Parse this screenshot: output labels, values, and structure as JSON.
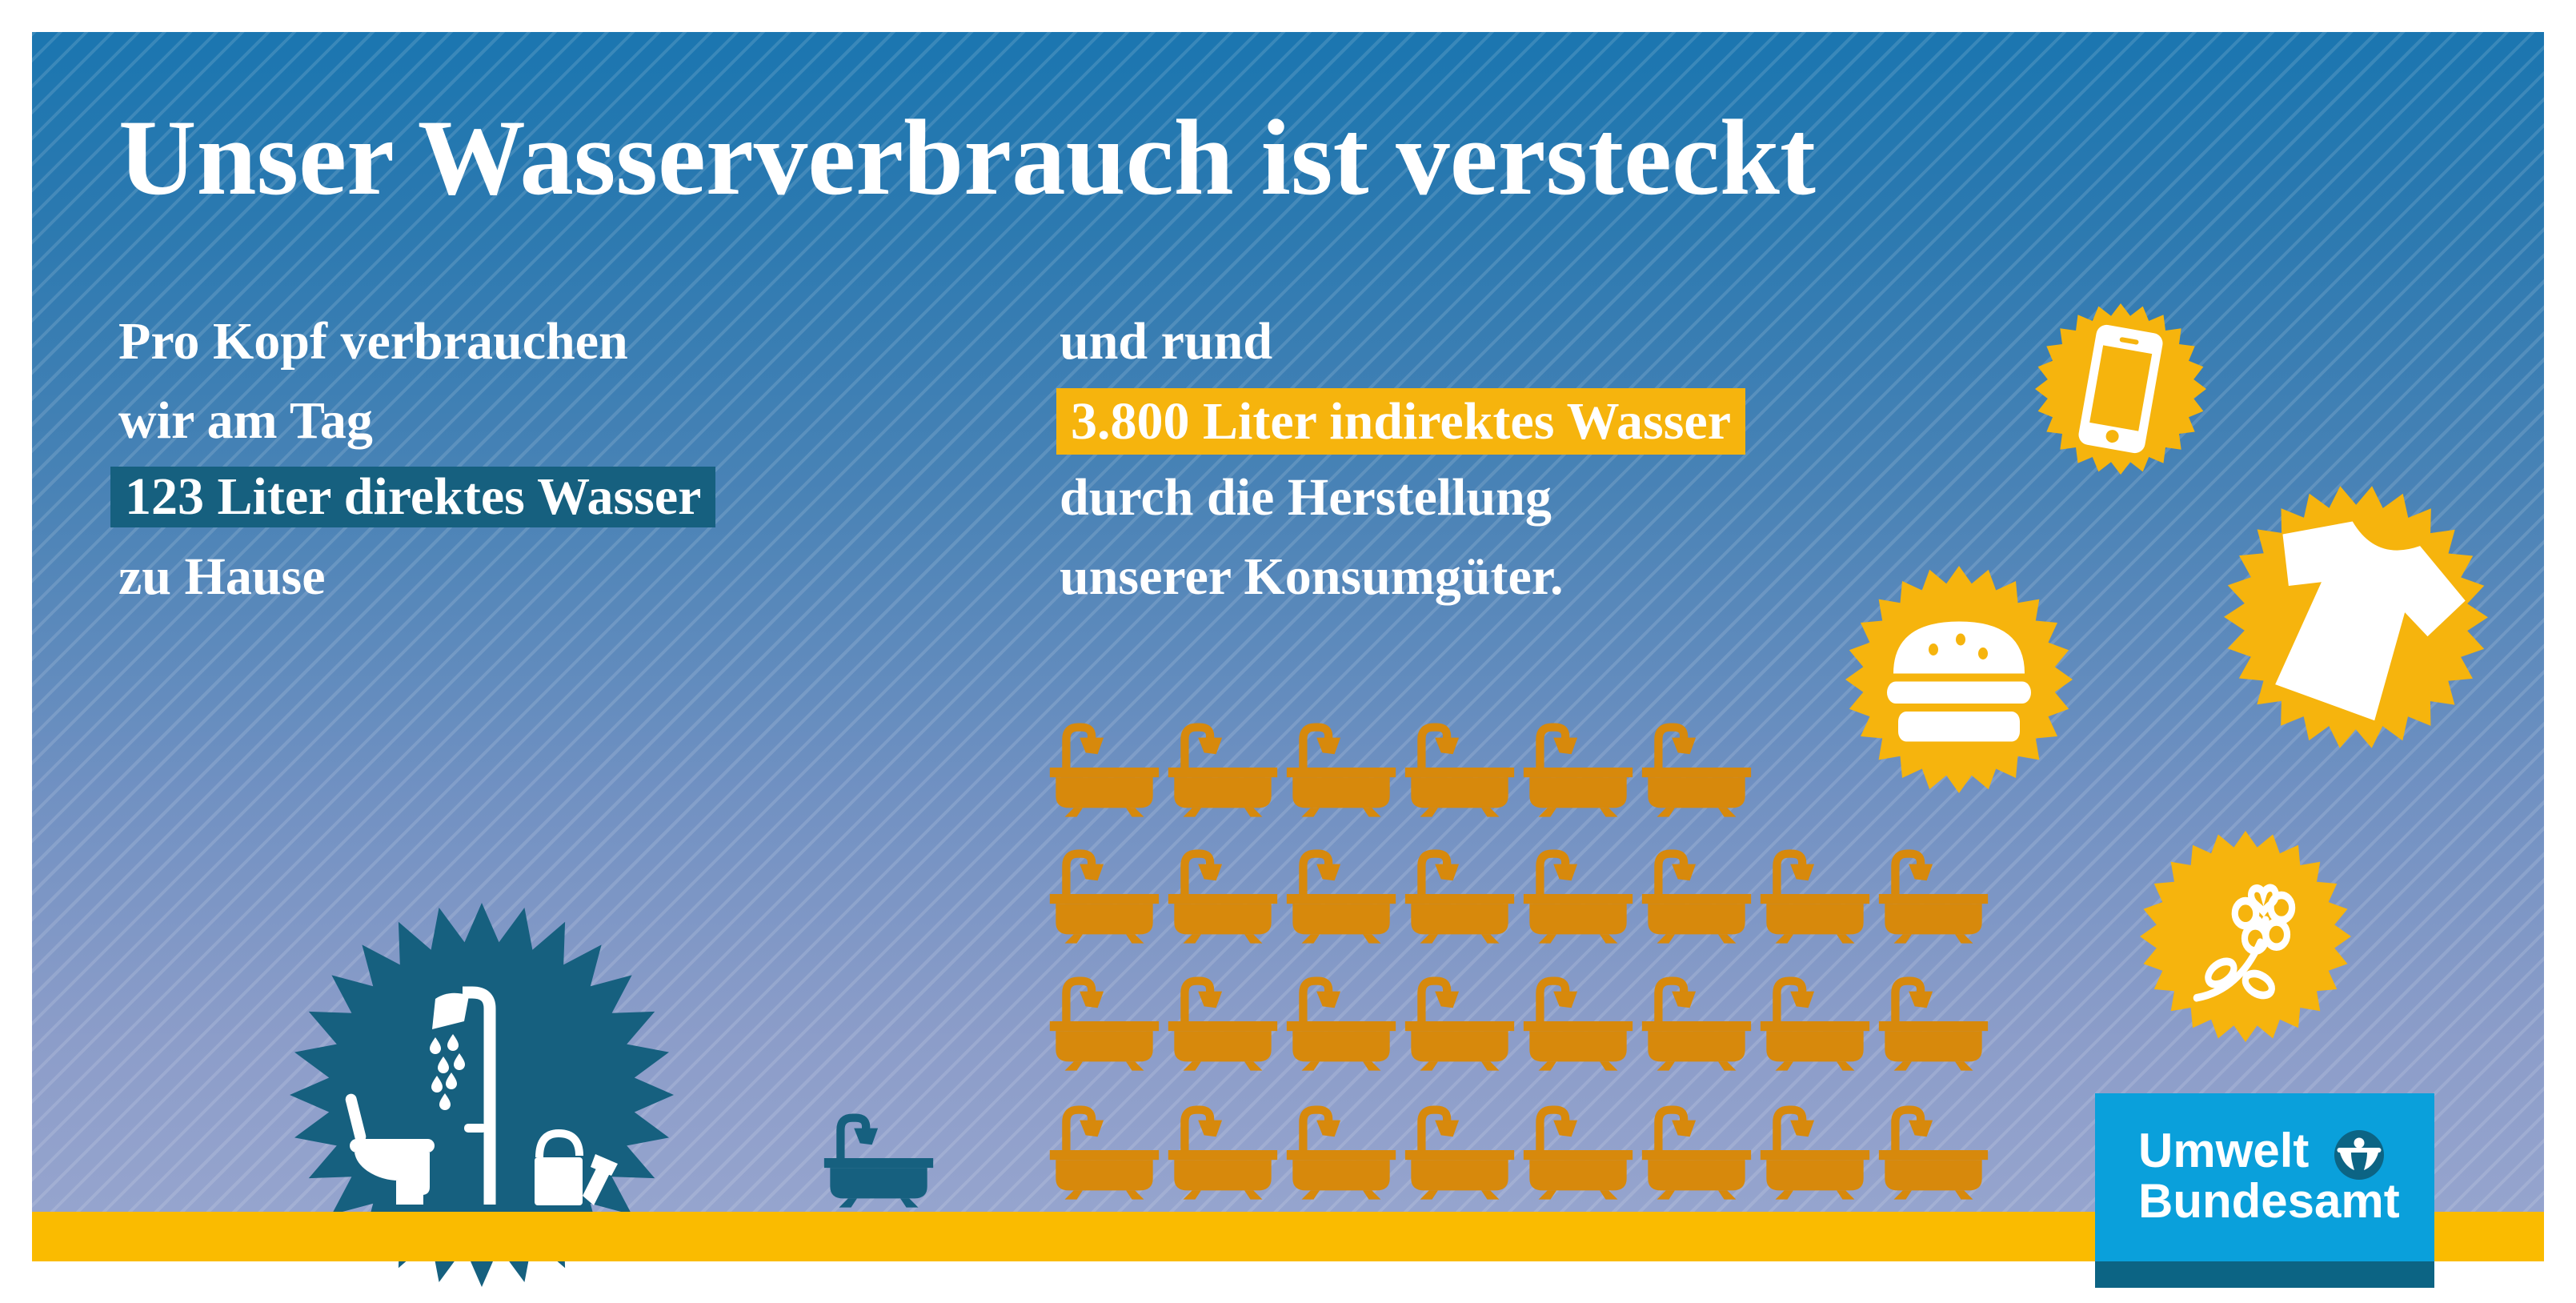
{
  "title": "Unser Wasserverbrauch ist versteckt",
  "left_block": {
    "line1": "Pro Kopf verbrauchen",
    "line2": "wir am Tag",
    "highlight": "123 Liter direktes Wasser",
    "line4": "zu Hause"
  },
  "right_block": {
    "line1": "und rund",
    "highlight": "3.800 Liter indirektes Wasser",
    "line3": "durch die Herstellung",
    "line4": "unserer Konsumgüter."
  },
  "logo": {
    "line1": "Umwelt",
    "line2": "Bundesamt"
  },
  "icons": [
    "smartphone-icon",
    "tshirt-icon",
    "burger-icon",
    "flower-icon",
    "toilet-icon",
    "shower-icon",
    "watering-can-icon",
    "bathtub-icon",
    "uba-figure-icon"
  ],
  "colors": {
    "background_top": "#1B76B0",
    "background_bottom": "#98A6CF",
    "accent_teal": "#16607F",
    "accent_yellow": "#F6B40D",
    "ground_yellow": "#FABB00",
    "bathtub_orange": "#D7890C",
    "logo_blue": "#0AA0DB",
    "logo_dark": "#0C6484",
    "text_white": "#FFFFFF"
  },
  "chart_data": {
    "type": "pictograph",
    "title": "Unser Wasserverbrauch ist versteckt",
    "unit": "Liter",
    "series": [
      {
        "name": "direktes Wasser zu Hause",
        "label": "123 Liter direktes Wasser",
        "value": 123,
        "icon": "bathtub",
        "icon_count": 1,
        "rows": [
          1
        ],
        "color": "#16607F"
      },
      {
        "name": "indirektes Wasser durch die Herstellung unserer Konsumgüter",
        "label": "3.800 Liter indirektes Wasser",
        "value": 3800,
        "icon": "bathtub",
        "icon_count": 30,
        "rows": [
          6,
          8,
          8,
          8
        ],
        "color": "#D7890C"
      }
    ]
  }
}
